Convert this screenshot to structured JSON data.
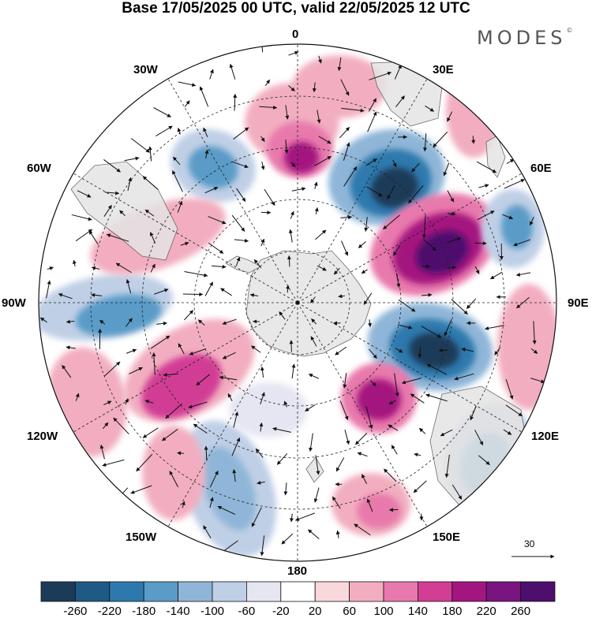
{
  "title": "Base 17/05/2025 00 UTC, valid 22/05/2025 12 UTC",
  "brand": "MODES",
  "brand_mark": "©",
  "longitude_labels": {
    "top": "0",
    "top_right": "30E",
    "right_upper": "60E",
    "right": "90E",
    "right_lower": "120E",
    "bottom_right": "150E",
    "bottom": "180",
    "bottom_left": "150W",
    "left_lower": "120W",
    "left": "90W",
    "left_upper": "60W",
    "top_left": "30W"
  },
  "vector_scale_label": "30",
  "colorbar": {
    "ticks": [
      "-260",
      "-220",
      "-180",
      "-140",
      "-100",
      "-60",
      "-20",
      "20",
      "60",
      "100",
      "140",
      "180",
      "220",
      "260"
    ],
    "colors": [
      "#1b3b58",
      "#1f5a87",
      "#2d79ad",
      "#5a9bc8",
      "#8fb6d8",
      "#bfcfe6",
      "#e6e6f2",
      "#ffffff",
      "#f8d8dc",
      "#f2aec0",
      "#e879ac",
      "#d13e94",
      "#a4167f",
      "#7a1480",
      "#4d0e6d"
    ]
  },
  "palette": {
    "land": "#e4e4e4",
    "coast": "#555555"
  }
}
